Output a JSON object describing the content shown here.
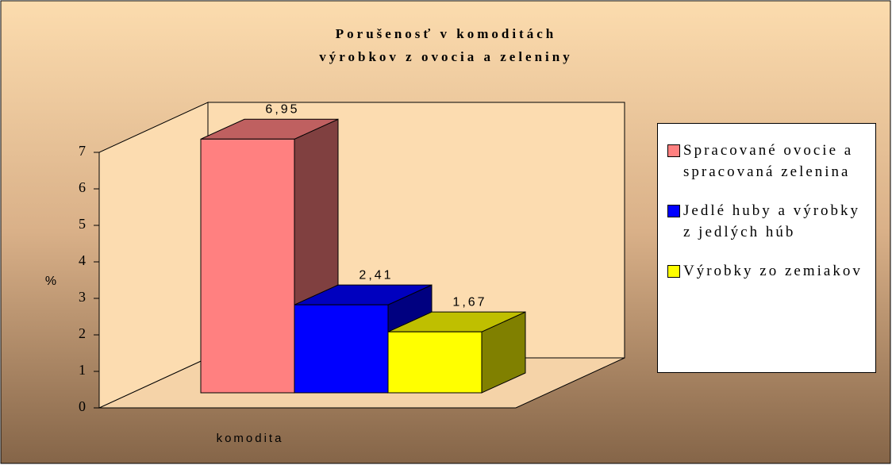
{
  "chart_data": {
    "type": "bar3d",
    "title": [
      "Porušenosť v komoditách",
      "výrobkov z ovocia a zeleniny"
    ],
    "categories": [
      "komodita"
    ],
    "y_label": "%",
    "series": [
      {
        "name": "Spracované ovocie a spracovaná zelenina",
        "color": "#ff8080",
        "values": [
          6.95
        ],
        "value_labels": [
          "6,95"
        ]
      },
      {
        "name": "Jedlé huby a výrobky z jedlých húb",
        "color": "#0000ff",
        "values": [
          2.41
        ],
        "value_labels": [
          "2,41"
        ]
      },
      {
        "name": "Výrobky zo zemiakov",
        "color": "#ffff00",
        "values": [
          1.67
        ],
        "value_labels": [
          "1,67"
        ]
      }
    ],
    "ylim": [
      0,
      7
    ],
    "yticks": [
      0,
      1,
      2,
      3,
      4,
      5,
      6,
      7
    ],
    "legend": "right"
  }
}
